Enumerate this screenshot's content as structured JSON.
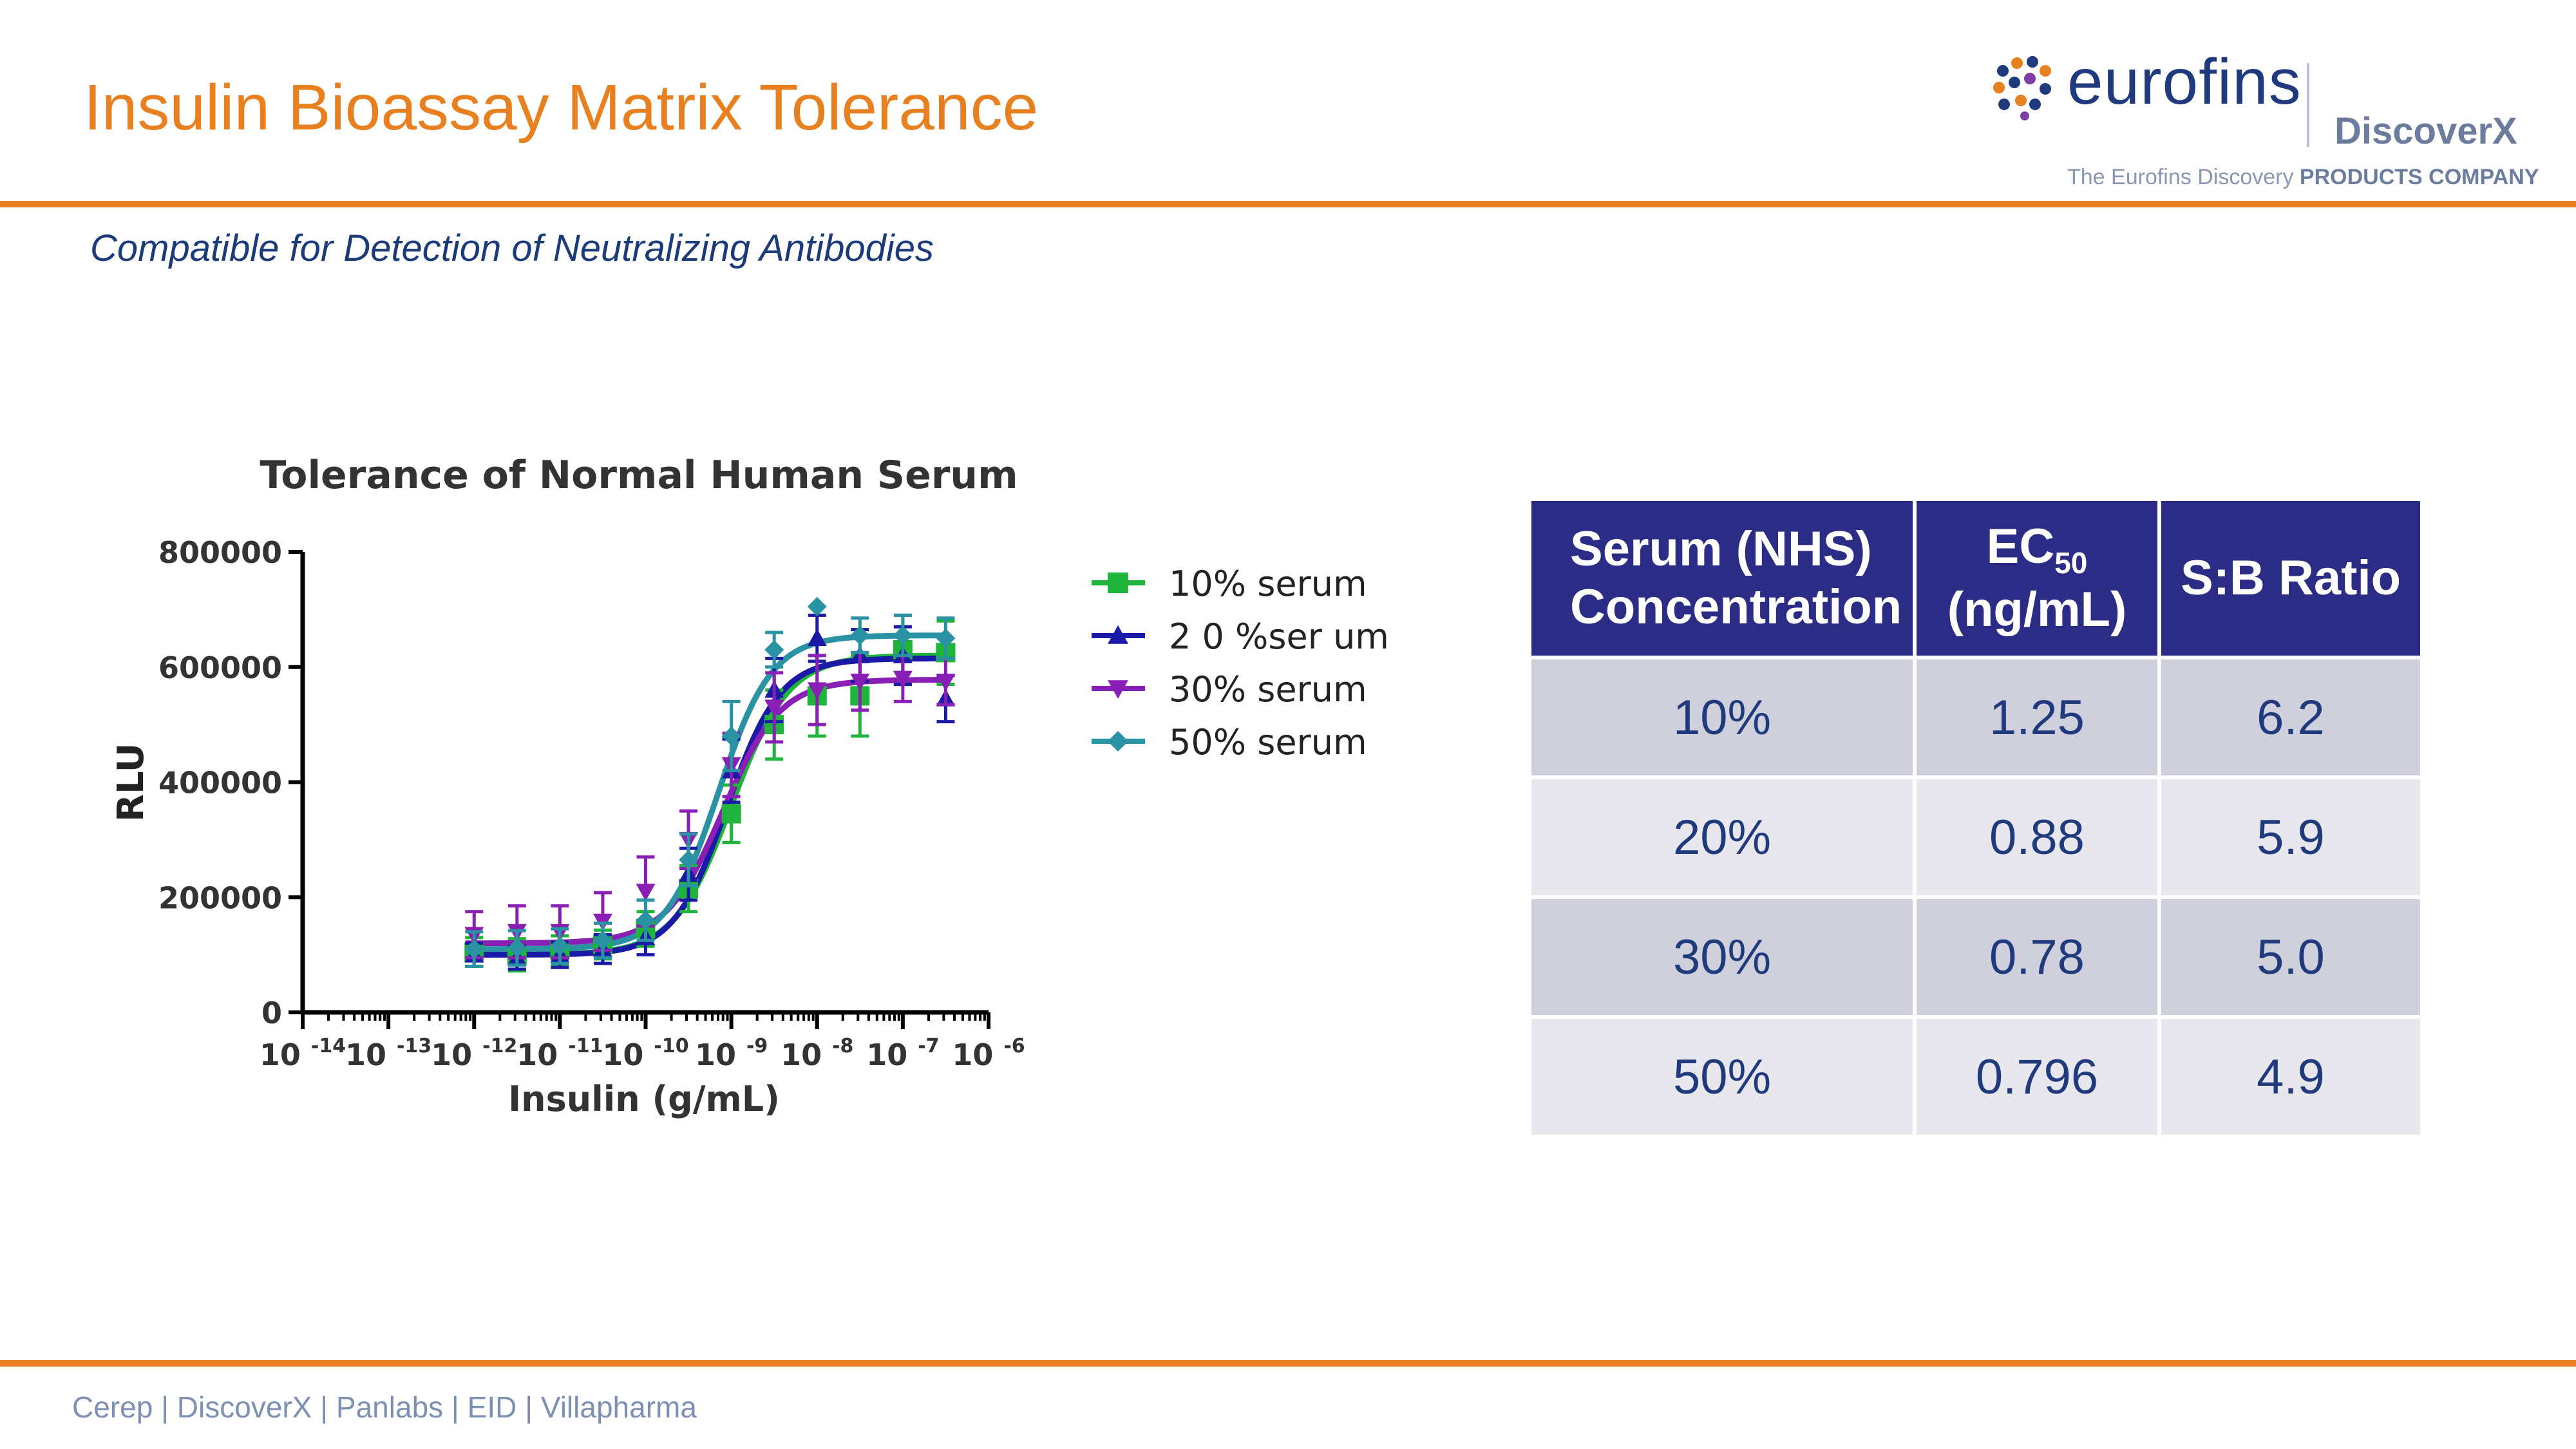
{
  "slide": {
    "title": "Insulin Bioassay Matrix Tolerance",
    "subtitle": "Compatible for Detection of Neutralizing Antibodies",
    "footer": "Cerep | DiscoverX | Panlabs | EID | Villapharma"
  },
  "logo": {
    "brand": "eurofins",
    "sub": "DiscoverX",
    "tagline_a": "The Eurofins Discovery ",
    "tagline_b": "PRODUCTS COMPANY"
  },
  "colors": {
    "accent": "#e8801f",
    "navy": "#1f3a7d",
    "table_header": "#2b2c86",
    "series_10": "#1fb53a",
    "series_20": "#1a1aa6",
    "series_30": "#8a1fb5",
    "series_50": "#2a93a3"
  },
  "chart_data": {
    "type": "line",
    "title": "Tolerance of Normal Human Serum",
    "xlabel": "Insulin (g/mL)",
    "ylabel": "RLU",
    "xscale": "log",
    "xlim_log10": [
      -14,
      -6
    ],
    "ylim": [
      0,
      800000
    ],
    "yticks": [
      {
        "value": 0,
        "label": "0"
      },
      {
        "value": 200000,
        "label": "200000"
      },
      {
        "value": 400000,
        "label": "400000"
      },
      {
        "value": 600000,
        "label": "600000"
      },
      {
        "value": 800000,
        "label": "800000"
      }
    ],
    "xticks": [
      {
        "exp": -14,
        "base": "10",
        "sup": "-14"
      },
      {
        "exp": -13,
        "base": "10",
        "sup": "-13"
      },
      {
        "exp": -12,
        "base": "10",
        "sup": "-12"
      },
      {
        "exp": -11,
        "base": "10",
        "sup": "-11"
      },
      {
        "exp": -10,
        "base": "10",
        "sup": "-10"
      },
      {
        "exp": -9,
        "base": "10",
        "sup": "-9"
      },
      {
        "exp": -8,
        "base": "10",
        "sup": "-8"
      },
      {
        "exp": -7,
        "base": "10",
        "sup": "-7"
      },
      {
        "exp": -6,
        "base": "10",
        "sup": "-6"
      }
    ],
    "legend_position": "right",
    "x_log10": [
      -12.0,
      -11.5,
      -11.0,
      -10.5,
      -10.0,
      -9.5,
      -9.0,
      -8.5,
      -8.0,
      -7.5,
      -7.0,
      -6.5
    ],
    "series": [
      {
        "name": "10% serum",
        "color": "#1fb53a",
        "marker": "square",
        "curve": {
          "bottom": 100000,
          "top": 620000,
          "log_ec50": -9.0,
          "hill": 1.3
        },
        "y": [
          105000,
          100000,
          108000,
          118000,
          145000,
          215000,
          345000,
          500000,
          550000,
          550000,
          630000,
          625000
        ],
        "err": [
          25000,
          28000,
          25000,
          25000,
          30000,
          40000,
          50000,
          60000,
          70000,
          70000,
          60000,
          55000
        ]
      },
      {
        "name": "2 0 %ser um",
        "color": "#1a1aa6",
        "marker": "triangle-up",
        "curve": {
          "bottom": 100000,
          "top": 615000,
          "log_ec50": -9.05,
          "hill": 1.4
        },
        "y": [
          100000,
          95000,
          100000,
          110000,
          130000,
          240000,
          420000,
          560000,
          650000,
          620000,
          620000,
          545000
        ],
        "err": [
          20000,
          20000,
          22000,
          25000,
          30000,
          45000,
          55000,
          55000,
          40000,
          45000,
          50000,
          40000
        ]
      },
      {
        "name": "30% serum",
        "color": "#8a1fb5",
        "marker": "triangle-down",
        "curve": {
          "bottom": 120000,
          "top": 578000,
          "log_ec50": -9.1,
          "hill": 1.3
        },
        "y": [
          135000,
          140000,
          140000,
          158000,
          210000,
          300000,
          430000,
          530000,
          560000,
          575000,
          580000,
          575000
        ],
        "err": [
          40000,
          45000,
          45000,
          50000,
          60000,
          50000,
          55000,
          60000,
          60000,
          50000,
          40000,
          40000
        ]
      },
      {
        "name": "50% serum",
        "color": "#2a93a3",
        "marker": "diamond",
        "curve": {
          "bottom": 110000,
          "top": 655000,
          "log_ec50": -9.15,
          "hill": 1.4
        },
        "y": [
          110000,
          112000,
          115000,
          125000,
          160000,
          265000,
          480000,
          630000,
          705000,
          655000,
          655000,
          650000
        ],
        "err": [
          30000,
          30000,
          30000,
          30000,
          35000,
          45000,
          60000,
          30000,
          0,
          30000,
          35000,
          35000
        ]
      }
    ]
  },
  "table": {
    "headers": {
      "col1_line1": "Serum (NHS)",
      "col1_line2": "Concentration",
      "col2_main": "EC",
      "col2_sub": "50",
      "col2_unit": "(ng/mL)",
      "col3": "S:B Ratio"
    },
    "rows": [
      [
        "10%",
        "1.25",
        "6.2"
      ],
      [
        "20%",
        "0.88",
        "5.9"
      ],
      [
        "30%",
        "0.78",
        "5.0"
      ],
      [
        "50%",
        "0.796",
        "4.9"
      ]
    ]
  }
}
